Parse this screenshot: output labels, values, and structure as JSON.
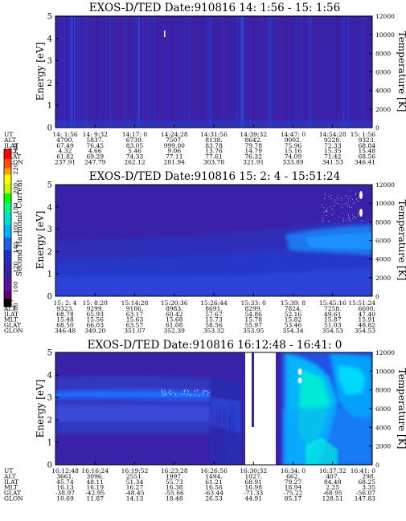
{
  "chart_data": [
    {
      "type": "heatmap",
      "title": "EXOS-D/TED   Date:910816  14: 1:56 - 15: 1:56",
      "ylabel": "Energy [eV]",
      "y2label": "Temperature [K]",
      "ylim": [
        0,
        5
      ],
      "y2lim": [
        0,
        12000
      ],
      "yticks": [
        "0",
        "1",
        "2",
        "3",
        "4",
        "5"
      ],
      "y2ticks": [
        "0",
        "2000",
        "4000",
        "6000",
        "8000",
        "10000",
        "12000"
      ],
      "table": {
        "row_labels": [
          "UT",
          "ALT",
          "ILAT",
          "MLT",
          "GLAT",
          "GLON"
        ],
        "columns": [
          [
            "14: 1:56",
            "4790.",
            "67.49",
            "4.32",
            "61.82",
            "237.91"
          ],
          [
            "14: 9:32",
            "5837.",
            "76.45",
            "4.66",
            "69.29",
            "247.79"
          ],
          [
            "14:17: 0",
            "6739.",
            "83.05",
            "5.46",
            "74.33",
            "262.12"
          ],
          [
            "14:24:28",
            "7507.",
            "999.00",
            "9.06",
            "77.11",
            "281.94"
          ],
          [
            "14:31:56",
            "8138.",
            "83.78",
            "13.76",
            "77.61",
            "303.78"
          ],
          [
            "14:39:32",
            "8642.",
            "79.78",
            "14.79",
            "76.32",
            "321.91"
          ],
          [
            "14:47: 0",
            "9002.",
            "75.96",
            "15.16",
            "74.09",
            "333.89"
          ],
          [
            "14:54:28",
            "9228.",
            "72.33",
            "15.35",
            "71.42",
            "341.53"
          ],
          [
            "15: 1:56",
            "9323.",
            "68.84",
            "15.48",
            "68.56",
            "346.41"
          ]
        ]
      }
    },
    {
      "type": "heatmap",
      "title": "EXOS-D/TED   Date:910816  15: 2: 4 - 15:51:24",
      "ylabel": "Energy [eV]",
      "y2label": "Temperature [K]",
      "ylim": [
        0,
        5
      ],
      "y2lim": [
        0,
        12000
      ],
      "yticks": [
        "0",
        "1",
        "2",
        "3",
        "4",
        "5"
      ],
      "y2ticks": [
        "0",
        "2000",
        "4000",
        "6000",
        "8000",
        "10000",
        "12000"
      ],
      "table": {
        "row_labels": [
          "UT",
          "ALT",
          "ILAT",
          "MLT",
          "GLAT",
          "GLON"
        ],
        "columns": [
          [
            "15: 2: 4",
            "9323.",
            "68.78",
            "15.48",
            "68.50",
            "346.48"
          ],
          [
            "15: 8:20",
            "9299.",
            "65.93",
            "15.56",
            "66.03",
            "349.20"
          ],
          [
            "15:14:28",
            "9186.",
            "63.17",
            "15.63",
            "63.57",
            "351.07"
          ],
          [
            "15:20:36",
            "8983.",
            "60.42",
            "15.68",
            "61.08",
            "352.39"
          ],
          [
            "15:26:44",
            "8691.",
            "57.67",
            "15.73",
            "58.56",
            "353.32"
          ],
          [
            "15:33: 0",
            "8299.",
            "54.86",
            "15.78",
            "55.97",
            "353.95"
          ],
          [
            "15:39: 8",
            "7824.",
            "52.16",
            "15.82",
            "53.46",
            "354.34"
          ],
          [
            "15:45:16",
            "7258.",
            "49.61",
            "15.87",
            "51.03",
            "354.53"
          ],
          [
            "15:51:24",
            "6600.",
            "47.40",
            "15.91",
            "48.82",
            "354.53"
          ]
        ]
      }
    },
    {
      "type": "heatmap",
      "title": "EXOS-D/TED   Date:910816  16:12:48 - 16:41: 0",
      "ylabel": "Energy [eV]",
      "y2label": "Temperature [K]",
      "ylim": [
        0,
        5
      ],
      "y2lim": [
        0,
        12000
      ],
      "yticks": [
        "0",
        "1",
        "2",
        "3",
        "4",
        "5"
      ],
      "y2ticks": [
        "0",
        "2000",
        "4000",
        "6000",
        "8000",
        "10000",
        "12000"
      ],
      "table": {
        "row_labels": [
          "UT",
          "ALT",
          "ILAT",
          "MLT",
          "GLAT",
          "GLON"
        ],
        "columns": [
          [
            "16:12:48",
            "3661.",
            "45.74",
            "16.13",
            "-38.97",
            "10.69"
          ],
          [
            "16:16:24",
            "3096.",
            "48.11",
            "16.19",
            "-42.95",
            "11.87"
          ],
          [
            "16:19:52",
            "2551.",
            "51.34",
            "16.27",
            "-48.45",
            "14.13"
          ],
          [
            "16:23:28",
            "1997.",
            "55.73",
            "16.38",
            "-55.66",
            "18.48"
          ],
          [
            "16:26:56",
            "1494.",
            "61.21",
            "16.56",
            "-63.44",
            "26.53"
          ],
          [
            "16:30:32",
            "1027.",
            "68.91",
            "16.98",
            "-71.33",
            "44.91"
          ],
          [
            "16:34: 0",
            "662.",
            "79.27",
            "18.94",
            "-75.22",
            "85.17"
          ],
          [
            "16:37:32",
            "407.",
            "84.48",
            "2.25",
            "-68.95",
            "128.51"
          ],
          [
            "16:41: 0",
            "298.",
            "68.25",
            "3.35",
            "-56.07",
            "147.83"
          ]
        ]
      }
    }
  ],
  "colorbar": {
    "label": "Second Harmonic Current",
    "ticks": [
      "80",
      "100",
      "120",
      "140",
      "160",
      "180",
      "200",
      "220",
      "240"
    ],
    "range": [
      80,
      240
    ],
    "colors": [
      "#000000",
      "#800080",
      "#3c0090",
      "#2030e0",
      "#00b0ff",
      "#00e0b0",
      "#00ff00",
      "#ffff00",
      "#ff8000",
      "#ff0000"
    ]
  }
}
